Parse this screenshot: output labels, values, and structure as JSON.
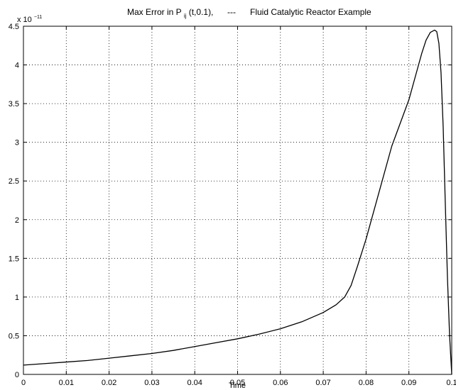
{
  "chart_data": {
    "type": "line",
    "title": {
      "prefix": "Max Error in P",
      "subscript": "ij",
      "suffix": "(t,0.1),",
      "legend_line": "---",
      "legend_text": "Fluid Catalytic Reactor Example"
    },
    "xlabel": "Time",
    "ylabel": "",
    "y_multiplier": {
      "base": "x 10",
      "exponent": "−11"
    },
    "xlim": [
      0,
      0.1
    ],
    "ylim": [
      0,
      4.5
    ],
    "xticks": [
      0,
      0.01,
      0.02,
      0.03,
      0.04,
      0.05,
      0.06,
      0.07,
      0.08,
      0.09,
      0.1
    ],
    "xtick_labels": [
      "0",
      "0.01",
      "0.02",
      "0.03",
      "0.04",
      "0.05",
      "0.06",
      "0.07",
      "0.08",
      "0.09",
      "0.1"
    ],
    "yticks": [
      0,
      0.5,
      1,
      1.5,
      2,
      2.5,
      3,
      3.5,
      4,
      4.5
    ],
    "ytick_labels": [
      "0",
      "0.5",
      "1",
      "1.5",
      "2",
      "2.5",
      "3",
      "3.5",
      "4",
      "4.5"
    ],
    "grid": true,
    "series": [
      {
        "x": [
          0,
          0.005,
          0.01,
          0.015,
          0.02,
          0.025,
          0.03,
          0.035,
          0.04,
          0.045,
          0.05,
          0.055,
          0.06,
          0.065,
          0.07,
          0.073,
          0.075,
          0.0765,
          0.078,
          0.08,
          0.082,
          0.084,
          0.086,
          0.088,
          0.09,
          0.092,
          0.093,
          0.094,
          0.095,
          0.096,
          0.0965,
          0.097,
          0.0975,
          0.098,
          0.0985,
          0.099,
          0.0995,
          0.1
        ],
        "y": [
          0.12,
          0.14,
          0.16,
          0.18,
          0.21,
          0.24,
          0.27,
          0.31,
          0.36,
          0.41,
          0.46,
          0.52,
          0.59,
          0.68,
          0.8,
          0.9,
          1.0,
          1.15,
          1.4,
          1.75,
          2.15,
          2.55,
          2.95,
          3.25,
          3.55,
          3.95,
          4.15,
          4.32,
          4.42,
          4.45,
          4.43,
          4.28,
          3.9,
          3.2,
          2.2,
          1.25,
          0.5,
          0
        ]
      }
    ]
  }
}
